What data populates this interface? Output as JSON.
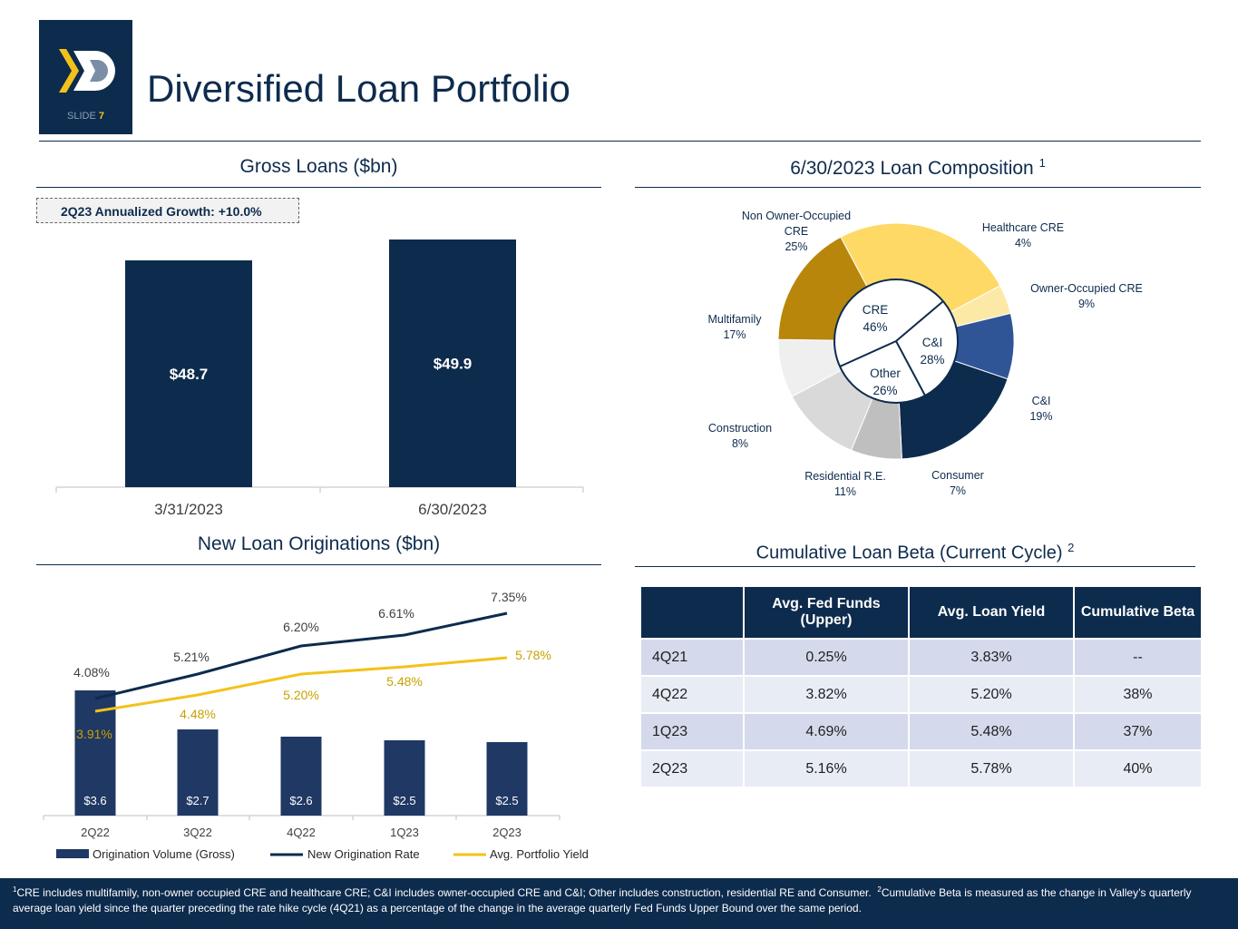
{
  "header": {
    "slide_label": "SLIDE",
    "slide_number": "7",
    "title": "Diversified Loan Portfolio"
  },
  "gross_loans": {
    "section_title": "Gross Loans ($bn)",
    "growth_note": "2Q23 Annualized Growth: +10.0%"
  },
  "composition": {
    "section_title": "6/30/2023 Loan Composition",
    "footnote_mark": "1"
  },
  "originations": {
    "section_title": "New Loan Originations ($bn)"
  },
  "beta": {
    "section_title": "Cumulative Loan Beta (Current Cycle)",
    "footnote_mark": "2",
    "headers": [
      "",
      "Avg. Fed Funds (Upper)",
      "Avg. Loan Yield",
      "Cumulative Beta"
    ],
    "rows": [
      [
        "4Q21",
        "0.25%",
        "3.83%",
        "--"
      ],
      [
        "4Q22",
        "3.82%",
        "5.20%",
        "38%"
      ],
      [
        "1Q23",
        "4.69%",
        "5.48%",
        "37%"
      ],
      [
        "2Q23",
        "5.16%",
        "5.78%",
        "40%"
      ]
    ]
  },
  "footer": {
    "mark1": "1",
    "text1": "CRE includes multifamily, non-owner occupied CRE and healthcare CRE; C&I includes owner-occupied CRE and C&I; Other includes construction, residential RE and Consumer.",
    "mark2": "2",
    "text2": "Cumulative Beta is measured as the change in Valley’s quarterly average loan yield since the quarter preceding the rate hike cycle (4Q21) as a percentage of the change in the average quarterly Fed Funds Upper Bound over the same period."
  },
  "colors": {
    "navy": "#0d2b4d",
    "gold": "#f3c21a",
    "bar_navy": "#1f3864"
  },
  "chart_data": [
    {
      "type": "bar",
      "title": "Gross Loans ($bn)",
      "categories": [
        "3/31/2023",
        "6/30/2023"
      ],
      "values": [
        48.7,
        49.9
      ],
      "labels": [
        "$48.7",
        "$49.9"
      ],
      "ylim": [
        0,
        55
      ]
    },
    {
      "type": "pie",
      "title": "6/30/2023 Loan Composition",
      "slices": [
        {
          "name": "Non Owner-Occupied CRE",
          "label_lines": [
            "Non Owner-Occupied",
            "CRE"
          ],
          "value": 25,
          "pct": "25%",
          "color": "#ffd966"
        },
        {
          "name": "Healthcare CRE",
          "label_lines": [
            "Healthcare CRE"
          ],
          "value": 4,
          "pct": "4%",
          "color": "#fde9a6"
        },
        {
          "name": "Owner-Occupied CRE",
          "label_lines": [
            "Owner-Occupied CRE"
          ],
          "value": 9,
          "pct": "9%",
          "color": "#2f5597"
        },
        {
          "name": "C&I",
          "label_lines": [
            "C&I"
          ],
          "value": 19,
          "pct": "19%",
          "color": "#0d2b4d"
        },
        {
          "name": "Consumer",
          "label_lines": [
            "Consumer"
          ],
          "value": 7,
          "pct": "7%",
          "color": "#bfbfbf"
        },
        {
          "name": "Residential R.E.",
          "label_lines": [
            "Residential R.E."
          ],
          "value": 11,
          "pct": "11%",
          "color": "#d9d9d9"
        },
        {
          "name": "Construction",
          "label_lines": [
            "Construction"
          ],
          "value": 8,
          "pct": "8%",
          "color": "#efefef"
        },
        {
          "name": "Multifamily",
          "label_lines": [
            "Multifamily"
          ],
          "value": 17,
          "pct": "17%",
          "color": "#b8860b"
        }
      ],
      "inner_groups": [
        {
          "name": "CRE",
          "pct": "46%"
        },
        {
          "name": "C&I",
          "pct": "28%"
        },
        {
          "name": "Other",
          "pct": "26%"
        }
      ]
    },
    {
      "type": "bar",
      "title": "New Loan Originations ($bn)",
      "categories": [
        "2Q22",
        "3Q22",
        "4Q22",
        "1Q23",
        "2Q23"
      ],
      "series": [
        {
          "name": "Origination Volume (Gross)",
          "kind": "bar",
          "values": [
            3.6,
            2.7,
            2.6,
            2.5,
            2.5
          ],
          "labels": [
            "$3.6",
            "$2.7",
            "$2.6",
            "$2.5",
            "$2.5"
          ],
          "color": "#1f3864"
        },
        {
          "name": "New Origination Rate",
          "kind": "line",
          "values": [
            4.08,
            5.21,
            6.2,
            6.61,
            7.35
          ],
          "labels": [
            "4.08%",
            "5.21%",
            "6.20%",
            "6.61%",
            "7.35%"
          ],
          "color": "#0d2b4d"
        },
        {
          "name": "Avg. Portfolio Yield",
          "kind": "line",
          "values": [
            3.91,
            4.48,
            5.2,
            5.48,
            5.78
          ],
          "labels": [
            "3.91%",
            "4.48%",
            "5.20%",
            "5.48%",
            "5.78%"
          ],
          "color": "#f3c21a"
        }
      ],
      "legend": "bottom"
    }
  ]
}
